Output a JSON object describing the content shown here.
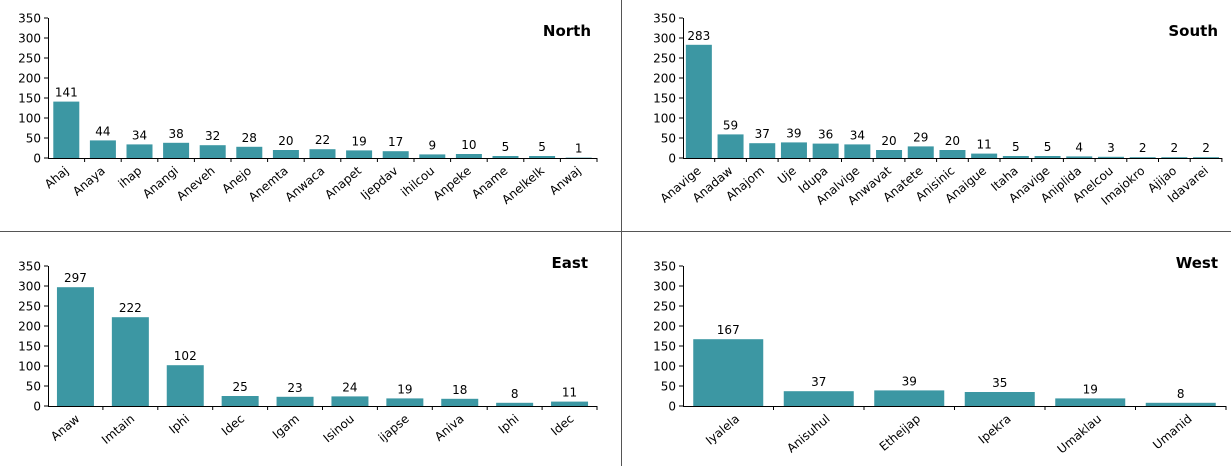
{
  "colors": {
    "bar": "#3c97a3",
    "axis": "#000000",
    "text": "#000000",
    "divider": "#555555"
  },
  "chart_data": [
    {
      "type": "bar",
      "title": "North",
      "ylim": [
        0,
        350
      ],
      "yticks": [
        0,
        50,
        100,
        150,
        200,
        250,
        300,
        350
      ],
      "categories": [
        "Ahaj",
        "Anaya",
        "ihap",
        "Anangi",
        "Aneveh",
        "Anejo",
        "Anemta",
        "Anwaca",
        "Anapet",
        "Ijepdav",
        "ihilcou",
        "Anpeke",
        "Aname",
        "Anelkelk",
        "Anwaj"
      ],
      "values": [
        141,
        44,
        34,
        38,
        32,
        28,
        20,
        22,
        19,
        17,
        9,
        10,
        5,
        5,
        1
      ],
      "grid": false
    },
    {
      "type": "bar",
      "title": "South",
      "ylim": [
        0,
        350
      ],
      "yticks": [
        0,
        50,
        100,
        150,
        200,
        250,
        300,
        350
      ],
      "categories": [
        "Anavige",
        "Anadaw",
        "Ahajom",
        "Uje",
        "Idupa",
        "Analvige",
        "Anwavat",
        "Anatete",
        "Anisinic",
        "Anaigue",
        "Itaha",
        "Anavige",
        "Aniplida",
        "Anelcou",
        "Imajokro",
        "Ajijao",
        "Idavarei"
      ],
      "values": [
        283,
        59,
        37,
        39,
        36,
        34,
        20,
        29,
        20,
        11,
        5,
        5,
        4,
        3,
        2,
        2,
        2
      ],
      "grid": false
    },
    {
      "type": "bar",
      "title": "East",
      "ylim": [
        0,
        350
      ],
      "yticks": [
        0,
        50,
        100,
        150,
        200,
        250,
        300,
        350
      ],
      "categories": [
        "Anaw",
        "Imtain",
        "Iphi",
        "Idec",
        "Igam",
        "Isinou",
        "ijapse",
        "Aniva",
        "Iphi",
        "Idec"
      ],
      "values": [
        297,
        222,
        102,
        25,
        23,
        24,
        19,
        18,
        8,
        11
      ],
      "grid": false
    },
    {
      "type": "bar",
      "title": "West",
      "ylim": [
        0,
        350
      ],
      "yticks": [
        0,
        50,
        100,
        150,
        200,
        250,
        300,
        350
      ],
      "categories": [
        "Iyalela",
        "Anisuhul",
        "Etheijap",
        "Ipekra",
        "Umaklau",
        "Umanid"
      ],
      "values": [
        167,
        37,
        39,
        35,
        19,
        8
      ],
      "grid": false
    }
  ]
}
